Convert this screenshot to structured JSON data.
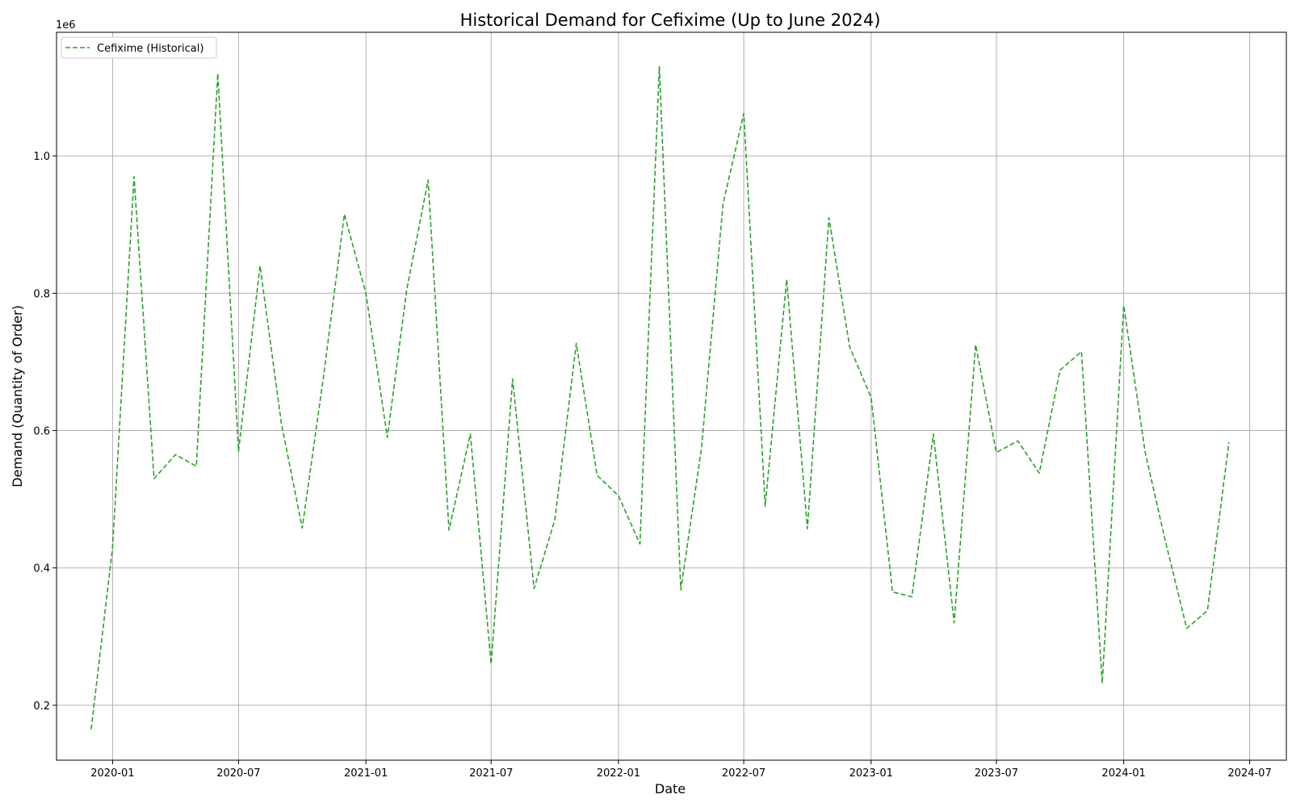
{
  "chart_data": {
    "type": "line",
    "title": "Historical Demand for Cefixime (Up to June 2024)",
    "xlabel": "Date",
    "ylabel": "Demand (Quantity of Order)",
    "y_offset_label": "1e6",
    "ylim": [
      120000,
      1180000
    ],
    "xlim": [
      "2019-10-12",
      "2024-08-23"
    ],
    "x_ticks": [
      {
        "date": "2020-01-01",
        "label": "2020-01"
      },
      {
        "date": "2020-07-01",
        "label": "2020-07"
      },
      {
        "date": "2021-01-01",
        "label": "2021-01"
      },
      {
        "date": "2021-07-01",
        "label": "2021-07"
      },
      {
        "date": "2022-01-01",
        "label": "2022-01"
      },
      {
        "date": "2022-07-01",
        "label": "2022-07"
      },
      {
        "date": "2023-01-01",
        "label": "2023-01"
      },
      {
        "date": "2023-07-01",
        "label": "2023-07"
      },
      {
        "date": "2024-01-01",
        "label": "2024-01"
      },
      {
        "date": "2024-07-01",
        "label": "2024-07"
      }
    ],
    "y_ticks": [
      {
        "value": 200000,
        "label": "0.2"
      },
      {
        "value": 400000,
        "label": "0.4"
      },
      {
        "value": 600000,
        "label": "0.6"
      },
      {
        "value": 800000,
        "label": "0.8"
      },
      {
        "value": 1000000,
        "label": "1.0"
      }
    ],
    "grid": true,
    "legend_position": "top-left",
    "series": [
      {
        "name": "Cefixime (Historical)",
        "color": "#2ca02c",
        "line_style": "dashed",
        "x": [
          "2019-12-01",
          "2020-01-01",
          "2020-02-01",
          "2020-03-01",
          "2020-04-01",
          "2020-05-01",
          "2020-06-01",
          "2020-07-01",
          "2020-08-01",
          "2020-09-01",
          "2020-10-01",
          "2020-11-01",
          "2020-12-01",
          "2021-01-01",
          "2021-02-01",
          "2021-03-01",
          "2021-04-01",
          "2021-05-01",
          "2021-06-01",
          "2021-07-01",
          "2021-08-01",
          "2021-09-01",
          "2021-10-01",
          "2021-11-01",
          "2021-12-01",
          "2022-01-01",
          "2022-02-01",
          "2022-03-01",
          "2022-04-01",
          "2022-05-01",
          "2022-06-01",
          "2022-07-01",
          "2022-08-01",
          "2022-09-01",
          "2022-10-01",
          "2022-11-01",
          "2022-12-01",
          "2023-01-01",
          "2023-02-01",
          "2023-03-01",
          "2023-04-01",
          "2023-05-01",
          "2023-06-01",
          "2023-07-01",
          "2023-08-01",
          "2023-09-01",
          "2023-10-01",
          "2023-11-01",
          "2023-12-01",
          "2024-01-01",
          "2024-02-01",
          "2024-03-01",
          "2024-04-01",
          "2024-05-01",
          "2024-06-01"
        ],
        "values": [
          165000,
          430000,
          970000,
          530000,
          565000,
          548000,
          1120000,
          570000,
          840000,
          610000,
          458000,
          680000,
          915000,
          800000,
          590000,
          805000,
          965000,
          455000,
          595000,
          260000,
          675000,
          370000,
          470000,
          727000,
          535000,
          505000,
          435000,
          1130000,
          368000,
          575000,
          930000,
          1062000,
          490000,
          820000,
          457000,
          910000,
          722000,
          648000,
          365000,
          358000,
          595000,
          320000,
          725000,
          568000,
          585000,
          538000,
          688000,
          715000,
          232000,
          782000,
          568000,
          440000,
          312000,
          338000,
          583000
        ]
      }
    ]
  }
}
